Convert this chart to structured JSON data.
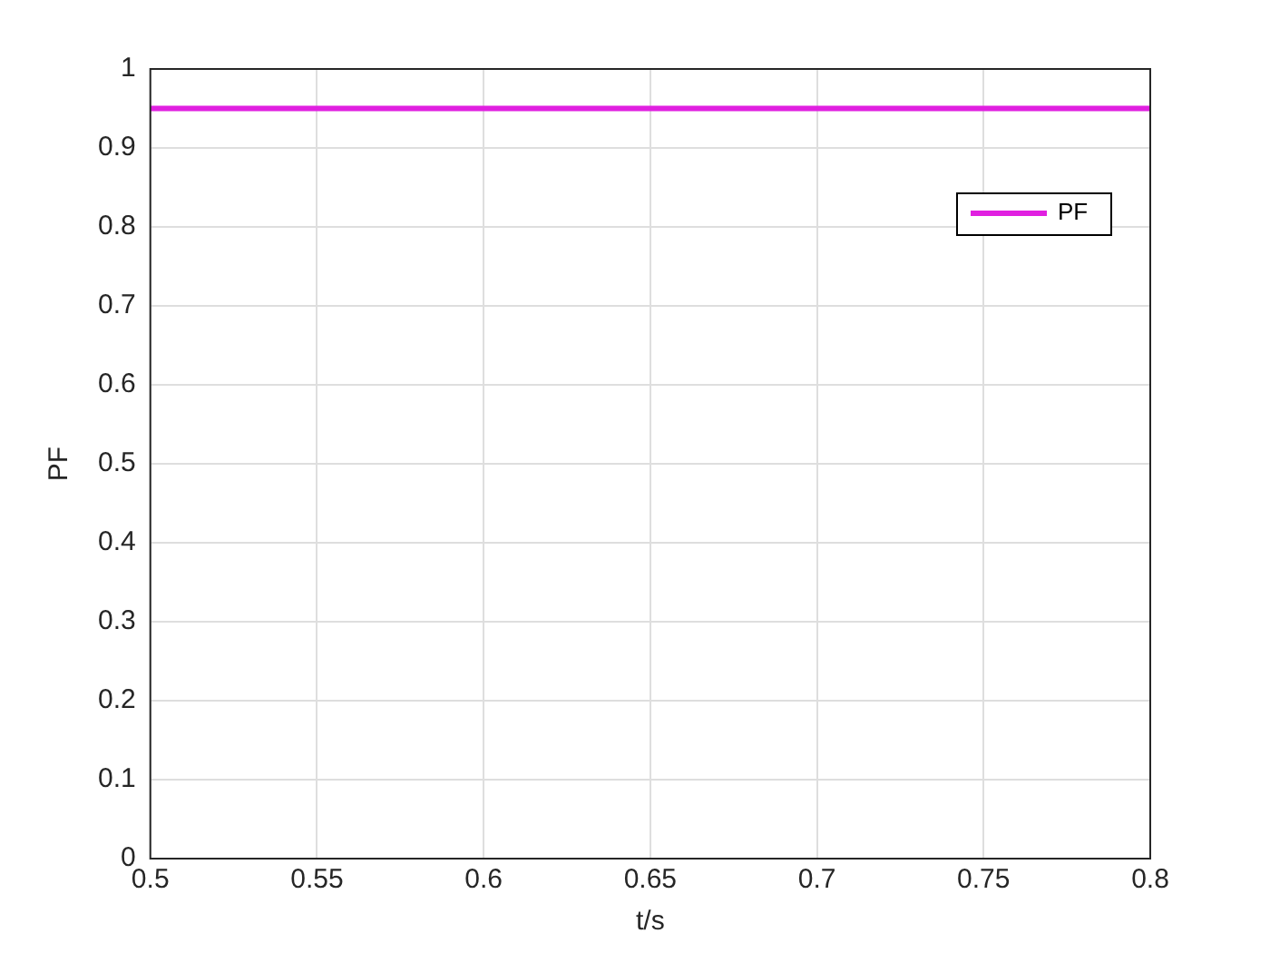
{
  "chart_data": {
    "type": "line",
    "xlabel": "t/s",
    "ylabel": "PF",
    "x": [
      0.5,
      0.8
    ],
    "series": [
      {
        "name": "PF",
        "color": "#e020e0",
        "values": [
          0.95,
          0.95
        ]
      }
    ],
    "xlim": [
      0.5,
      0.8
    ],
    "xticks": [
      0.5,
      0.55,
      0.6,
      0.65,
      0.7,
      0.75,
      0.8
    ],
    "ylim": [
      0,
      1
    ],
    "yticks": [
      0,
      0.1,
      0.2,
      0.3,
      0.4,
      0.5,
      0.6,
      0.7,
      0.8,
      0.9,
      1
    ],
    "grid": true,
    "legend": "top right",
    "marker": "none",
    "line_style": "solid"
  }
}
